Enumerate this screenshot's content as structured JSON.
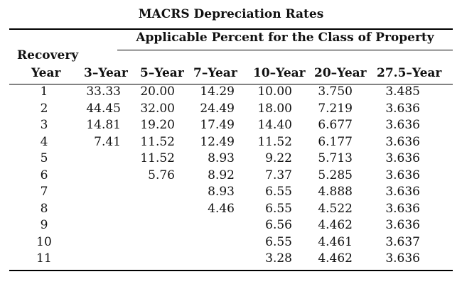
{
  "title": "MACRS Depreciation Rates",
  "subtitle": "Applicable Percent for the Class of Property",
  "header": {
    "recovery": "Recovery",
    "year": "Year",
    "classes": [
      "3–Year",
      "5–Year",
      "7–Year",
      "10–Year",
      "20–Year",
      "27.5–Year"
    ]
  },
  "rows": [
    {
      "year": "1",
      "vals": [
        "33.33",
        "20.00",
        "14.29",
        "10.00",
        "3.750",
        "3.485"
      ]
    },
    {
      "year": "2",
      "vals": [
        "44.45",
        "32.00",
        "24.49",
        "18.00",
        "7.219",
        "3.636"
      ]
    },
    {
      "year": "3",
      "vals": [
        "14.81",
        "19.20",
        "17.49",
        "14.40",
        "6.677",
        "3.636"
      ]
    },
    {
      "year": "4",
      "vals": [
        "7.41",
        "11.52",
        "12.49",
        "11.52",
        "6.177",
        "3.636"
      ]
    },
    {
      "year": "5",
      "vals": [
        "",
        "11.52",
        "8.93",
        "9.22",
        "5.713",
        "3.636"
      ]
    },
    {
      "year": "6",
      "vals": [
        "",
        "5.76",
        "8.92",
        "7.37",
        "5.285",
        "3.636"
      ]
    },
    {
      "year": "7",
      "vals": [
        "",
        "",
        "8.93",
        "6.55",
        "4.888",
        "3.636"
      ]
    },
    {
      "year": "8",
      "vals": [
        "",
        "",
        "4.46",
        "6.55",
        "4.522",
        "3.636"
      ]
    },
    {
      "year": "9",
      "vals": [
        "",
        "",
        "",
        "6.56",
        "4.462",
        "3.636"
      ]
    },
    {
      "year": "10",
      "vals": [
        "",
        "",
        "",
        "6.55",
        "4.461",
        "3.637"
      ]
    },
    {
      "year": "11",
      "vals": [
        "",
        "",
        "",
        "3.28",
        "4.462",
        "3.636"
      ]
    }
  ]
}
